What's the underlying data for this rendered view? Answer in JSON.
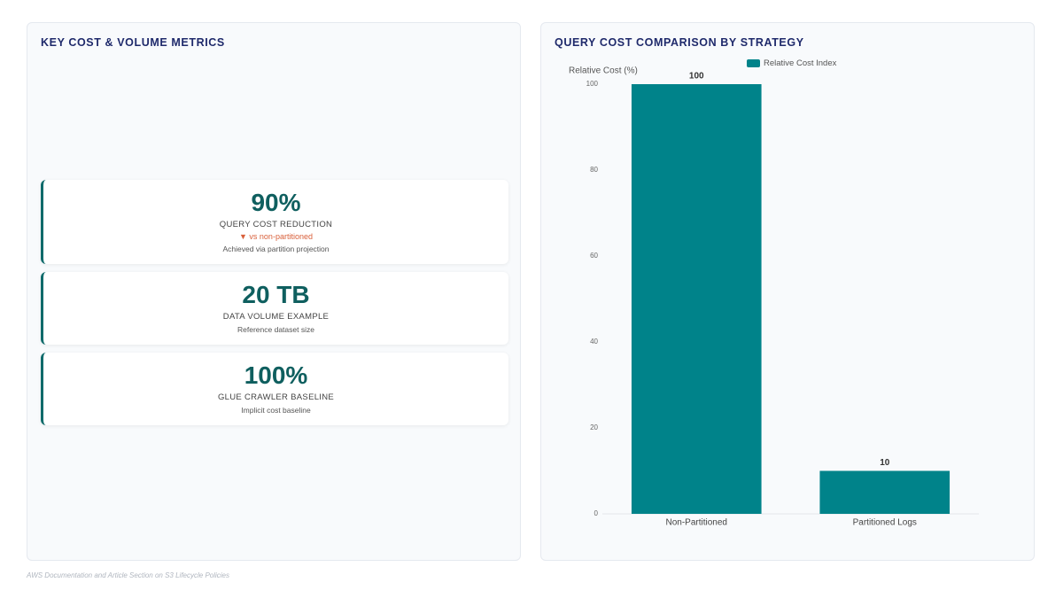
{
  "metrics_panel": {
    "title": "KEY COST & VOLUME METRICS",
    "cards": [
      {
        "value": "90%",
        "label": "QUERY COST REDUCTION",
        "delta": "▼ vs non-partitioned",
        "note": "Achieved via partition projection"
      },
      {
        "value": "20 TB",
        "label": "DATA VOLUME EXAMPLE",
        "note": "Reference dataset size"
      },
      {
        "value": "100%",
        "label": "GLUE CRAWLER BASELINE",
        "note": "Implicit cost baseline"
      }
    ]
  },
  "chart_data": {
    "type": "bar",
    "title": "QUERY COST COMPARISON BY STRATEGY",
    "y_label": "Relative Cost (%)",
    "categories": [
      "Non-Partitioned",
      "Partitioned Logs"
    ],
    "series": [
      {
        "name": "Relative Cost Index",
        "color": "#00838a",
        "values": [
          100,
          10
        ]
      }
    ],
    "ylim": [
      0,
      100
    ],
    "yticks": [
      0,
      20,
      40,
      60,
      80,
      100
    ],
    "grid": false
  },
  "footer": "AWS Documentation and Article Section on S3 Lifecycle Policies"
}
